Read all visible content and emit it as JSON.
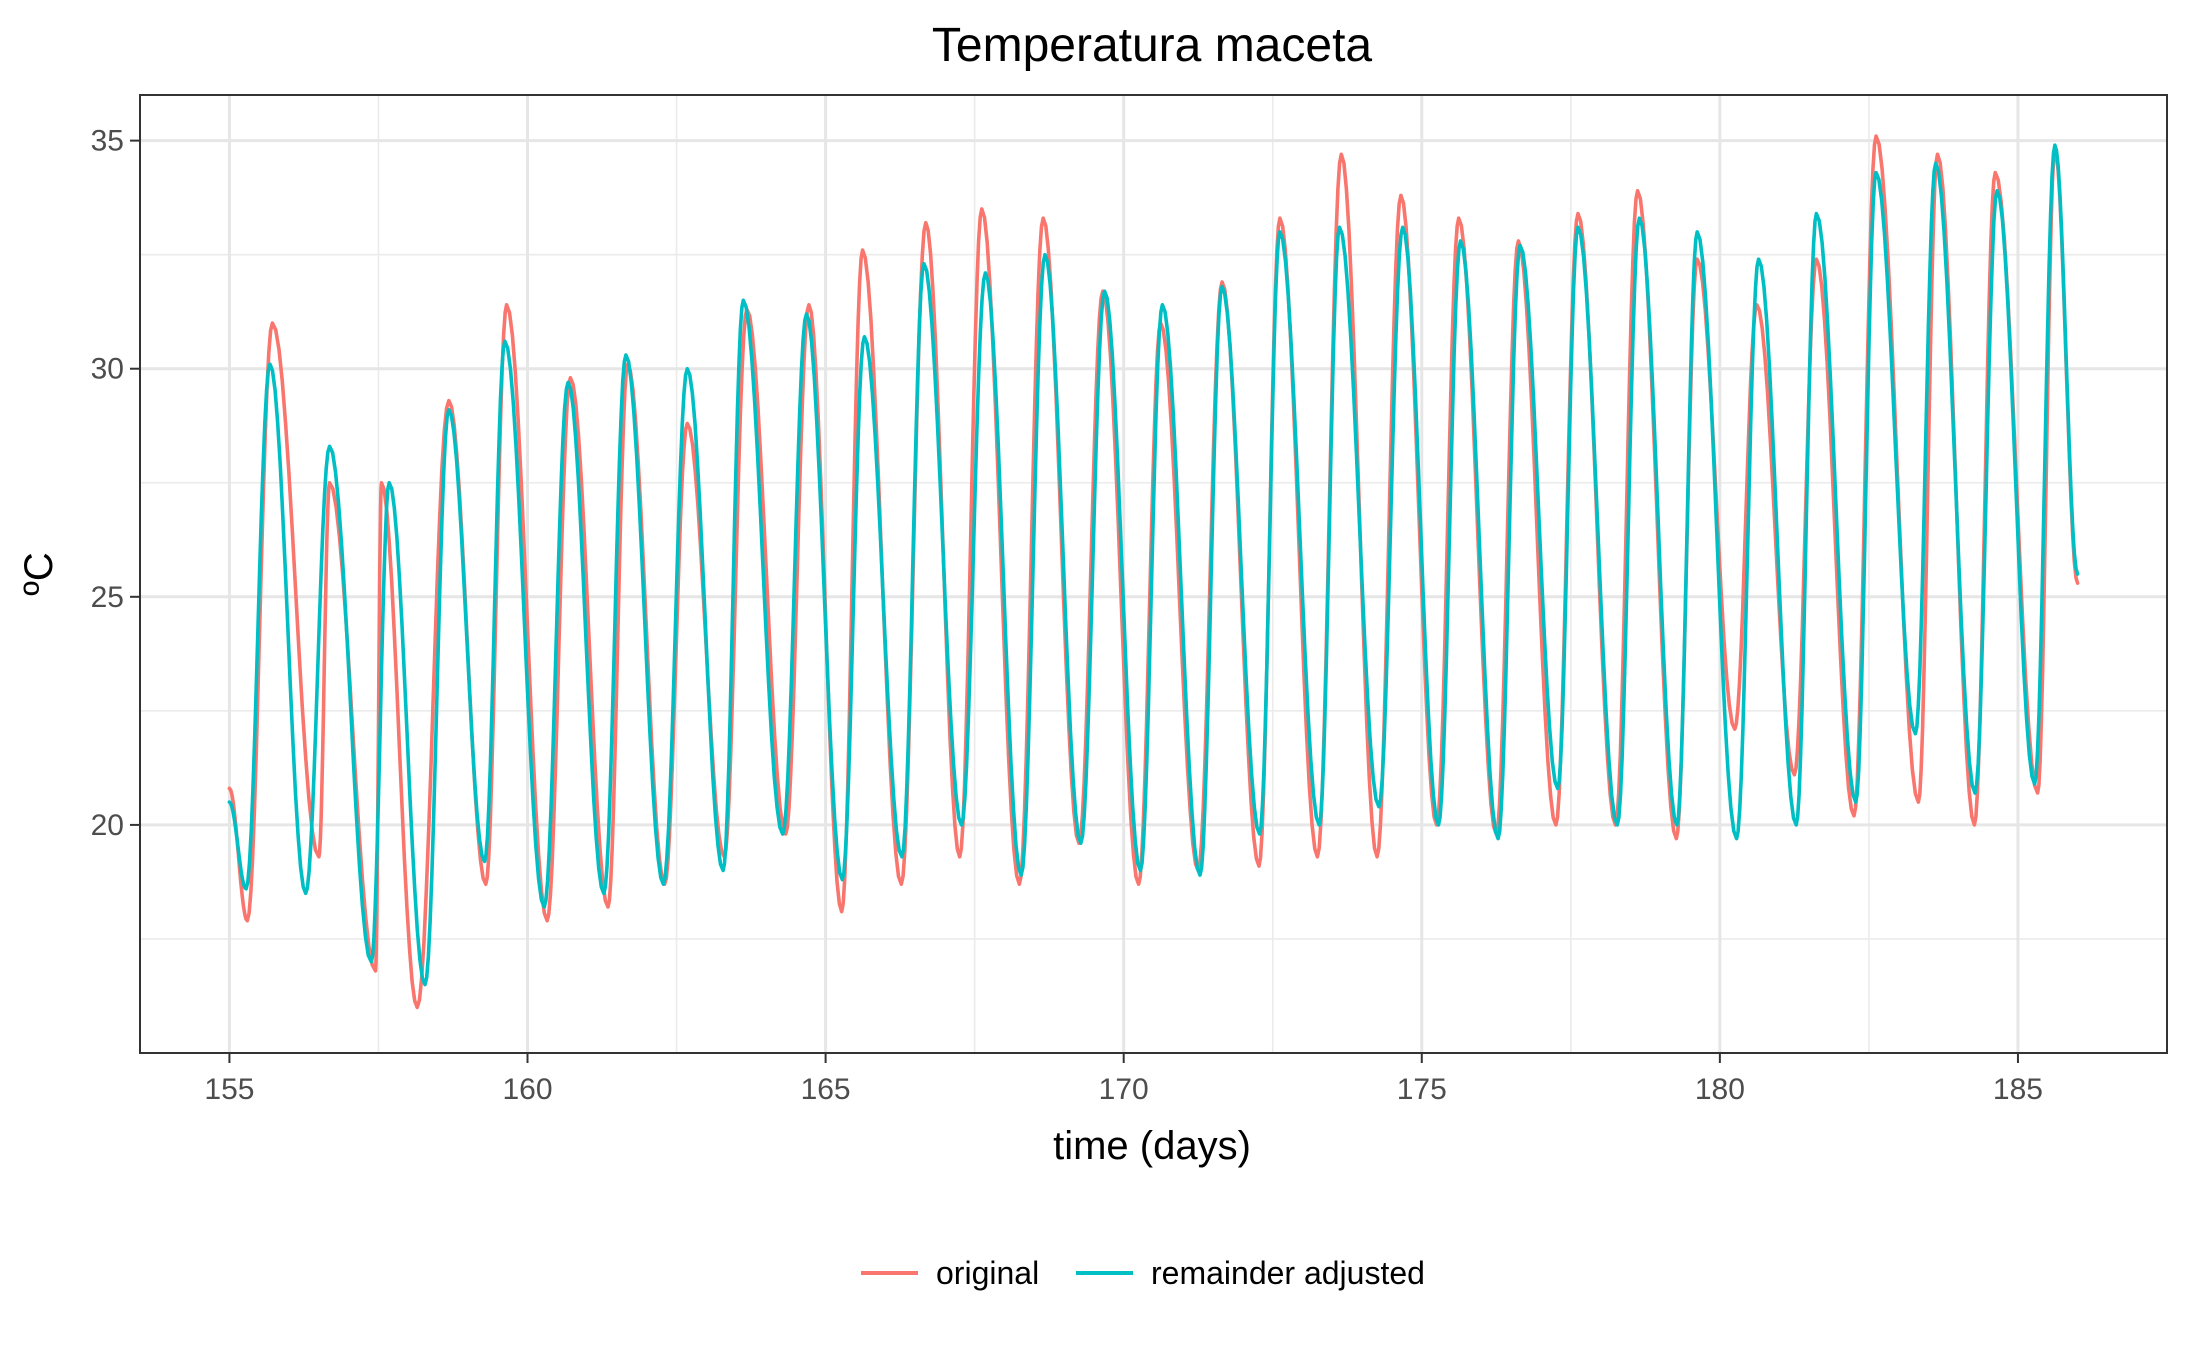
{
  "chart_data": {
    "type": "line",
    "title": "Temperatura maceta",
    "xlabel": "time (days)",
    "ylabel": "ºC",
    "xlim": [
      153.5,
      187.5
    ],
    "ylim": [
      15,
      36
    ],
    "x_ticks": [
      155,
      160,
      165,
      170,
      175,
      180,
      185
    ],
    "x_tick_labels": [
      "155",
      "160",
      "165",
      "170",
      "175",
      "180",
      "185"
    ],
    "y_ticks": [
      20,
      25,
      30,
      35
    ],
    "y_tick_labels": [
      "20",
      "25",
      "30",
      "35"
    ],
    "grid": true,
    "legend_position": "bottom",
    "series": [
      {
        "name": "original",
        "color": "#F8766D",
        "min_x": [
          155.3,
          156.5,
          157.45,
          158.15,
          159.3,
          160.33,
          161.35,
          162.3,
          163.3,
          164.33,
          165.27,
          166.27,
          167.25,
          168.25,
          169.25,
          170.25,
          171.25,
          172.27,
          173.25,
          174.25,
          175.25,
          176.25,
          177.25,
          178.25,
          179.27,
          180.25,
          181.25,
          182.25,
          183.33,
          184.27,
          185.33
        ],
        "min_y": [
          17.9,
          19.3,
          16.8,
          16.0,
          18.7,
          17.9,
          18.2,
          18.7,
          19.3,
          19.8,
          18.1,
          18.7,
          19.3,
          18.7,
          19.6,
          18.7,
          19.0,
          19.1,
          19.3,
          19.3,
          20.0,
          19.8,
          20.0,
          20.0,
          19.7,
          22.1,
          21.1,
          20.2,
          20.5,
          20.0,
          20.7
        ],
        "max_x": [
          155.72,
          156.68,
          157.55,
          158.68,
          159.65,
          160.72,
          161.68,
          162.68,
          163.68,
          164.72,
          165.62,
          166.68,
          167.62,
          168.65,
          169.65,
          170.62,
          171.65,
          172.62,
          173.65,
          174.65,
          175.62,
          176.62,
          177.62,
          178.62,
          179.62,
          180.62,
          181.62,
          182.62,
          183.65,
          184.62,
          185.62
        ],
        "max_y": [
          31.0,
          27.5,
          27.5,
          29.3,
          31.4,
          29.8,
          30.1,
          28.8,
          31.3,
          31.4,
          32.6,
          33.2,
          33.5,
          33.3,
          31.7,
          31.0,
          31.9,
          33.3,
          34.7,
          33.8,
          33.3,
          32.8,
          33.4,
          33.9,
          32.4,
          31.4,
          32.4,
          35.1,
          34.7,
          34.3,
          34.8
        ],
        "end": [
          186.0,
          25.3
        ]
      },
      {
        "name": "remainder adjusted",
        "color": "#00BFC4",
        "min_x": [
          155.28,
          156.28,
          157.38,
          158.28,
          159.28,
          160.28,
          161.28,
          162.28,
          163.28,
          164.28,
          165.28,
          166.28,
          167.28,
          168.28,
          169.28,
          170.28,
          171.28,
          172.28,
          173.28,
          174.28,
          175.28,
          176.28,
          177.28,
          178.28,
          179.28,
          180.28,
          181.28,
          182.28,
          183.28,
          184.28,
          185.28
        ],
        "min_y": [
          18.6,
          18.5,
          17.0,
          16.5,
          19.2,
          18.2,
          18.5,
          18.7,
          19.0,
          19.8,
          18.8,
          19.3,
          20.0,
          18.9,
          19.6,
          19.0,
          18.9,
          19.8,
          20.0,
          20.4,
          20.0,
          19.7,
          20.8,
          20.0,
          20.0,
          19.7,
          20.0,
          20.5,
          22.0,
          20.7,
          20.9
        ],
        "max_x": [
          155.68,
          156.68,
          157.68,
          158.68,
          159.62,
          160.68,
          161.65,
          162.68,
          163.62,
          164.68,
          165.65,
          166.65,
          167.68,
          168.68,
          169.68,
          170.65,
          171.65,
          172.62,
          173.62,
          174.68,
          175.65,
          176.65,
          177.62,
          178.65,
          179.62,
          180.65,
          181.62,
          182.62,
          183.62,
          184.65,
          185.62
        ],
        "max_y": [
          30.1,
          28.3,
          27.5,
          29.1,
          30.6,
          29.7,
          30.3,
          30.0,
          31.5,
          31.2,
          30.7,
          32.3,
          32.1,
          32.5,
          31.7,
          31.4,
          31.8,
          33.0,
          33.1,
          33.1,
          32.8,
          32.7,
          33.1,
          33.3,
          33.0,
          32.4,
          33.4,
          34.3,
          34.5,
          33.9,
          34.9
        ],
        "end": [
          186.0,
          25.5
        ]
      }
    ]
  }
}
